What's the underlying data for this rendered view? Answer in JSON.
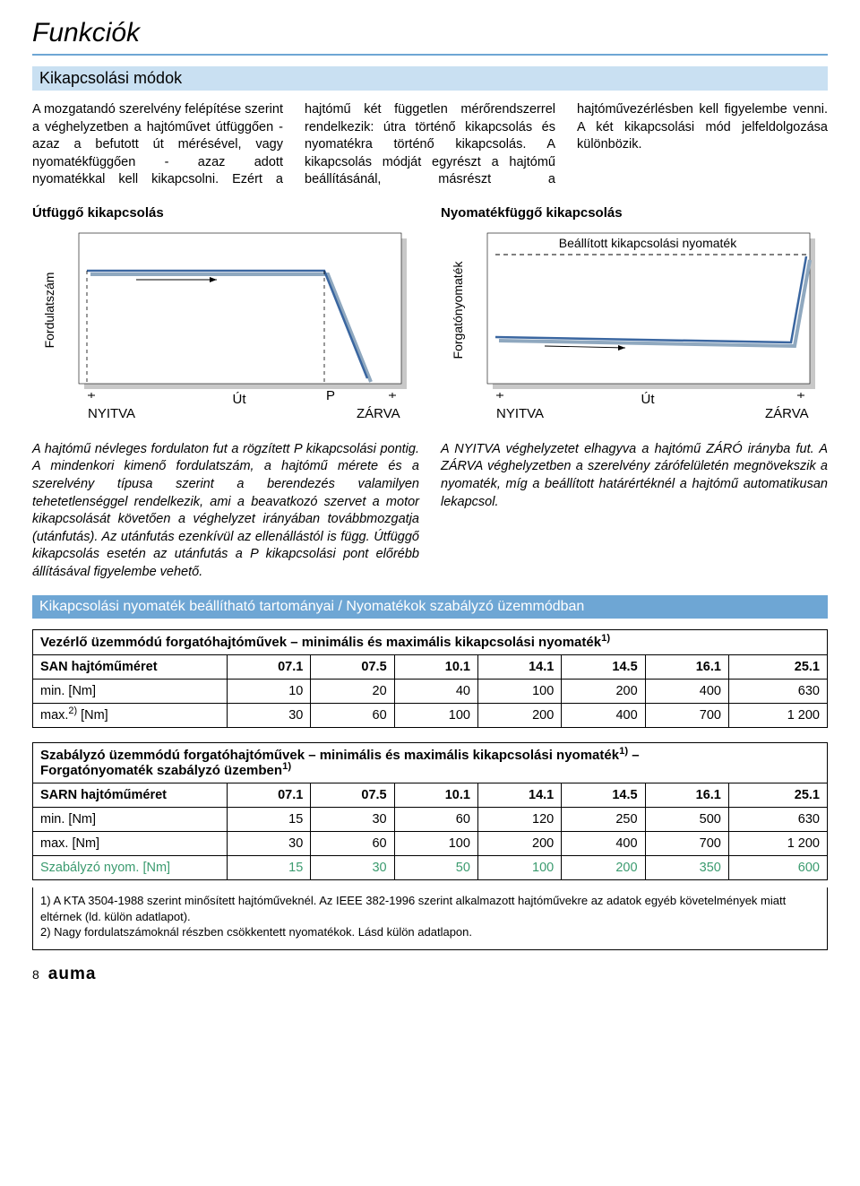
{
  "colors": {
    "accent_light": "#c9e0f2",
    "accent": "#6ea6d4",
    "chart_line": "#3a66a0",
    "chart_shadow": "#8fa8bf",
    "mod_green": "#3b9b6f",
    "text": "#000000",
    "bg": "#ffffff"
  },
  "heading": "Funkciók",
  "section_bar": "Kikapcsolási módok",
  "intro_text": "A mozgatandó szerelvény felépítése szerint a véghelyzetben a hajtóművet útfüggően - azaz a befutott út mérésével, vagy nyomatékfüggően - azaz adott nyomatékkal kell kikapcsolni. Ezért a hajtómű két független mérőrendszerrel rendelkezik: útra történő kikapcsolás és nyomatékra történő kikapcsolás. A kikapcsolás módját egyrészt a hajtómű beállításánál, másrészt a hajtóművezérlésben kell figyelembe venni. A két kikapcsolási mód jelfeldolgozása különbözik.",
  "left_chart": {
    "title": "Útfüggő kikapcsolás",
    "type": "line",
    "ylabel": "Fordulatszám",
    "xlabel": "Út",
    "xlim": [
      0,
      100
    ],
    "ylim": [
      0,
      100
    ],
    "left_label": "NYITVA",
    "right_label": "ZÁRVA",
    "p_label": "P",
    "plateau_y": 78,
    "p_x": 78,
    "end_x": 94,
    "line_color": "#3a66a0",
    "shadow_color": "#8fa8bf",
    "dash": "4,4",
    "background": "#ffffff"
  },
  "right_chart": {
    "title": "Nyomatékfüggő kikapcsolás",
    "type": "line",
    "ylabel": "Forgatónyomaték",
    "xlabel": "Út",
    "xlim": [
      0,
      100
    ],
    "ylim": [
      0,
      100
    ],
    "left_label": "NYITVA",
    "right_label": "ZÁRVA",
    "set_label": "Beállított kikapcsolási nyomaték",
    "set_level_y": 88,
    "low_y": 33,
    "rise_x": 95,
    "line_color": "#3a66a0",
    "shadow_color": "#8fa8bf",
    "dash": "4,4",
    "background": "#ffffff"
  },
  "left_desc": "A hajtómű névleges fordulaton fut a rögzített P kikapcsolási pontig. A mindenkori kimenő fordulatszám, a hajtómű mérete és a szerelvény típusa szerint a berendezés valamilyen tehetetlenséggel rendelkezik, ami a beavatkozó szervet a motor kikapcsolását követően a véghelyzet irányában továbbmozgatja (utánfutás). Az utánfutás ezenkívül az ellenállástól is függ. Útfüggő kikapcsolás esetén az utánfutás a P kikapcsolási pont előrébb állításával figyelembe vehető.",
  "right_desc": "A NYITVA véghelyzetet elhagyva a hajtómű ZÁRÓ irányba fut. A ZÁRVA véghelyzetben a szerelvény zárófelületén megnövekszik a nyomaték, míg a beállított határértéknél a hajtómű automatikusan lekapcsol.",
  "ranges_bar": "Kikapcsolási nyomaték beállítható tartományai / Nyomatékok szabályzó üzemmódban",
  "table1": {
    "title": "Vezérlő üzemmódú forgatóhajtóművek – minimális és maximális kikapcsolási nyomaték",
    "sup": "1)",
    "row_head": "SAN hajtóműméret",
    "sizes": [
      "07.1",
      "07.5",
      "10.1",
      "14.1",
      "14.5",
      "16.1",
      "25.1"
    ],
    "min_label": "min. [Nm]",
    "min": [
      10,
      20,
      40,
      100,
      200,
      400,
      630
    ],
    "max_label": "max.",
    "max_sup": "2)",
    "max_unit": " [Nm]",
    "max": [
      30,
      60,
      100,
      200,
      400,
      700,
      "1 200"
    ]
  },
  "table2": {
    "title_l1": "Szabályzó üzemmódú forgatóhajtóművek – minimális és maximális kikapcsolási nyomaték",
    "sup1": "1)",
    "title_l2": "Forgatónyomaték szabályzó üzemben",
    "sup2": "1)",
    "row_head": "SARN hajtóműméret",
    "sizes": [
      "07.1",
      "07.5",
      "10.1",
      "14.1",
      "14.5",
      "16.1",
      "25.1"
    ],
    "min_label": "min. [Nm]",
    "min": [
      15,
      30,
      60,
      120,
      250,
      500,
      630
    ],
    "max_label": "max. [Nm]",
    "max": [
      30,
      60,
      100,
      200,
      400,
      700,
      "1 200"
    ],
    "mod_label": "Szabályzó nyom. [Nm]",
    "mod": [
      15,
      30,
      50,
      100,
      200,
      350,
      600
    ]
  },
  "footnotes": {
    "f1": "1)  A KTA 3504-1988 szerint minősített hajtóműveknél. Az IEEE 382-1996 szerint alkalmazott hajtóművekre az adatok egyéb követelmények miatt eltérnek (ld. külön adatlapot).",
    "f2": "2)  Nagy fordulatszámoknál részben csökkentett nyomatékok. Lásd külön adatlapon."
  },
  "page_num": "8",
  "auma": "auma"
}
